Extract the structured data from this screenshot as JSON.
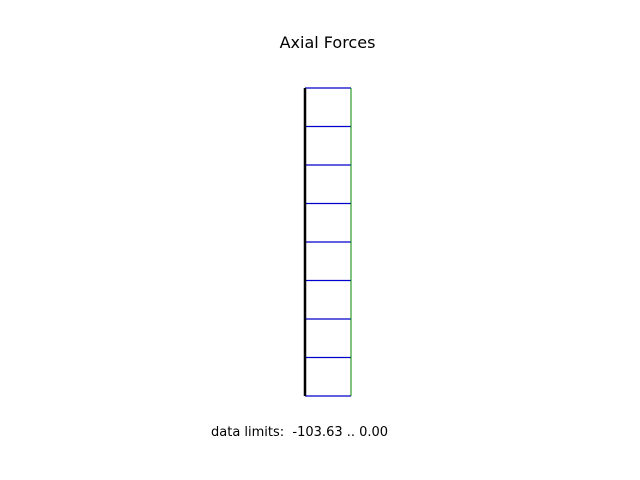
{
  "title": "Axial Forces",
  "data_limits_text": "data limits:  -103.63 .. 0.00",
  "colors": {
    "member": "#000000",
    "force_fill_lines": "#0000cc",
    "force_outline": "#008800"
  },
  "diagram": {
    "segment_count": 8
  }
}
